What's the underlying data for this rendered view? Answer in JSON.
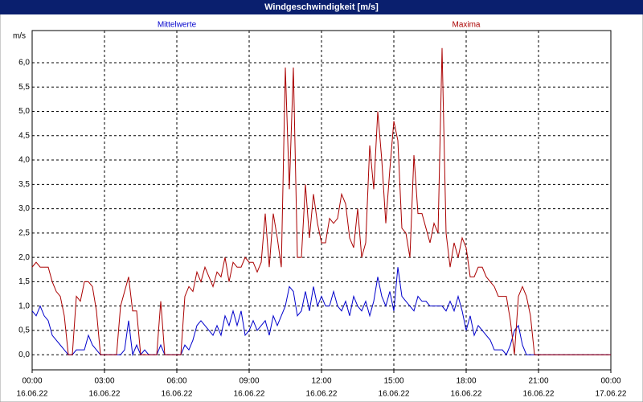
{
  "chart_data": {
    "type": "line",
    "title": "Windgeschwindigkeit [m/s]",
    "ylabel": "m/s",
    "x": [
      0,
      10,
      20,
      30,
      40,
      50,
      60,
      70,
      80,
      90,
      100,
      110,
      120,
      130,
      140,
      150,
      160,
      170,
      180,
      190,
      200,
      210,
      220,
      230,
      240,
      250,
      260,
      270,
      280,
      290,
      300,
      310,
      320,
      330,
      340,
      350,
      360,
      370,
      380,
      390,
      400,
      410,
      420,
      430,
      440,
      450,
      460,
      470,
      480,
      490,
      500,
      510,
      520,
      530,
      540,
      550,
      560,
      570,
      580,
      590,
      600,
      610,
      620,
      630,
      640,
      650,
      660,
      670,
      680,
      690,
      700,
      710,
      720,
      730,
      740,
      750,
      760,
      770,
      780,
      790,
      800,
      810,
      820,
      830,
      840,
      850,
      860,
      870,
      880,
      890,
      900,
      910,
      920,
      930,
      940,
      950,
      960,
      970,
      980,
      990,
      1000,
      1010,
      1020,
      1030,
      1040,
      1050,
      1060,
      1070,
      1080,
      1090,
      1100,
      1110,
      1120,
      1130,
      1140,
      1150,
      1160,
      1170,
      1180,
      1190,
      1200,
      1210,
      1220,
      1230,
      1240,
      1250,
      1260,
      1270,
      1280,
      1290,
      1300,
      1310,
      1320,
      1330,
      1340,
      1350,
      1360,
      1370,
      1380,
      1390,
      1400,
      1410,
      1420,
      1430,
      1440
    ],
    "xlim": [
      0,
      1440
    ],
    "xticks": [
      {
        "value": 0,
        "label": "00:00"
      },
      {
        "value": 180,
        "label": "03:00"
      },
      {
        "value": 360,
        "label": "06:00"
      },
      {
        "value": 540,
        "label": "09:00"
      },
      {
        "value": 720,
        "label": "12:00"
      },
      {
        "value": 900,
        "label": "15:00"
      },
      {
        "value": 1080,
        "label": "18:00"
      },
      {
        "value": 1260,
        "label": "21:00"
      },
      {
        "value": 1440,
        "label": "00:00"
      }
    ],
    "xtick_dates": [
      "16.06.22",
      "16.06.22",
      "16.06.22",
      "16.06.22",
      "16.06.22",
      "16.06.22",
      "16.06.22",
      "16.06.22",
      "17.06.22"
    ],
    "ylim": [
      -0.31,
      6.66
    ],
    "yticks": [
      {
        "value": 0,
        "label": "0,0"
      },
      {
        "value": 0.5,
        "label": "0,5"
      },
      {
        "value": 1,
        "label": "1,0"
      },
      {
        "value": 1.5,
        "label": "1,5"
      },
      {
        "value": 2,
        "label": "2,0"
      },
      {
        "value": 2.5,
        "label": "2,5"
      },
      {
        "value": 3,
        "label": "3,0"
      },
      {
        "value": 3.5,
        "label": "3,5"
      },
      {
        "value": 4,
        "label": "4,0"
      },
      {
        "value": 4.5,
        "label": "4,5"
      },
      {
        "value": 5,
        "label": "5,0"
      },
      {
        "value": 5.5,
        "label": "5,5"
      },
      {
        "value": 6,
        "label": "6,0"
      }
    ],
    "grid": true,
    "series": [
      {
        "name": "Mittelwerte",
        "color": "#0000cc",
        "values": [
          0.9,
          0.8,
          1.0,
          0.8,
          0.7,
          0.4,
          0.3,
          0.2,
          0.1,
          0,
          0,
          0.1,
          0.1,
          0.1,
          0.4,
          0.2,
          0.1,
          0,
          0,
          0,
          0,
          0,
          0,
          0.1,
          0.7,
          0,
          0.2,
          0,
          0.1,
          0,
          0,
          0,
          0.2,
          0,
          0,
          0,
          0,
          0,
          0.2,
          0.1,
          0.3,
          0.6,
          0.7,
          0.6,
          0.5,
          0.4,
          0.6,
          0.4,
          0.8,
          0.6,
          0.9,
          0.6,
          0.9,
          0.4,
          0.5,
          0.7,
          0.5,
          0.6,
          0.7,
          0.4,
          0.8,
          0.6,
          0.8,
          1.0,
          1.4,
          1.3,
          0.8,
          0.9,
          1.3,
          0.9,
          1.4,
          1.0,
          1.2,
          1.0,
          1.0,
          1.3,
          1.0,
          0.9,
          1.1,
          0.8,
          1.2,
          1.0,
          0.9,
          1.1,
          0.8,
          1.1,
          1.6,
          1.2,
          1.0,
          1.3,
          0.9,
          1.8,
          1.2,
          1.1,
          1.0,
          0.9,
          1.2,
          1.1,
          1.1,
          1.0,
          1.0,
          1.0,
          1.0,
          0.9,
          1.1,
          0.9,
          1.2,
          0.9,
          0.5,
          0.8,
          0.4,
          0.6,
          0.5,
          0.4,
          0.3,
          0.1,
          0.1,
          0.1,
          0,
          0.2,
          0.5,
          0.6,
          0.2,
          0,
          0,
          0,
          0,
          0,
          0,
          0,
          0,
          0,
          0,
          0,
          0,
          0,
          0,
          0,
          0,
          0,
          0,
          0,
          0,
          0,
          0
        ]
      },
      {
        "name": "Maxima",
        "color": "#aa0000",
        "values": [
          1.8,
          1.9,
          1.8,
          1.8,
          1.8,
          1.5,
          1.3,
          1.2,
          0.8,
          0,
          0,
          1.2,
          1.1,
          1.5,
          1.5,
          1.4,
          0.9,
          0,
          0,
          0,
          0,
          0,
          1.0,
          1.3,
          1.6,
          0.9,
          0.9,
          0,
          0,
          0,
          0,
          0,
          1.1,
          0,
          0,
          0,
          0,
          0,
          1.2,
          1.4,
          1.3,
          1.7,
          1.5,
          1.8,
          1.6,
          1.4,
          1.7,
          1.6,
          2.0,
          1.5,
          1.9,
          1.8,
          1.8,
          2.0,
          1.9,
          1.9,
          1.7,
          1.9,
          2.9,
          1.8,
          2.9,
          2.4,
          1.8,
          5.9,
          3.4,
          5.9,
          2.0,
          2.0,
          3.5,
          2.4,
          3.3,
          2.7,
          2.3,
          2.3,
          2.8,
          2.7,
          2.8,
          3.3,
          3.1,
          2.4,
          2.2,
          3.0,
          2.0,
          2.3,
          4.3,
          3.4,
          5.0,
          4.0,
          2.7,
          3.8,
          4.8,
          4.4,
          2.6,
          2.5,
          2.0,
          4.1,
          2.9,
          2.9,
          2.6,
          2.3,
          2.7,
          2.5,
          6.3,
          2.5,
          1.8,
          2.3,
          2.0,
          2.4,
          2.2,
          1.6,
          1.6,
          1.8,
          1.8,
          1.6,
          1.5,
          1.4,
          1.2,
          1.2,
          1.2,
          0.7,
          0,
          1.2,
          1.4,
          1.2,
          0.8,
          0,
          0,
          0,
          0,
          0,
          0,
          0,
          0,
          0,
          0,
          0,
          0,
          0,
          0,
          0,
          0,
          0,
          0,
          0,
          0
        ]
      }
    ]
  }
}
